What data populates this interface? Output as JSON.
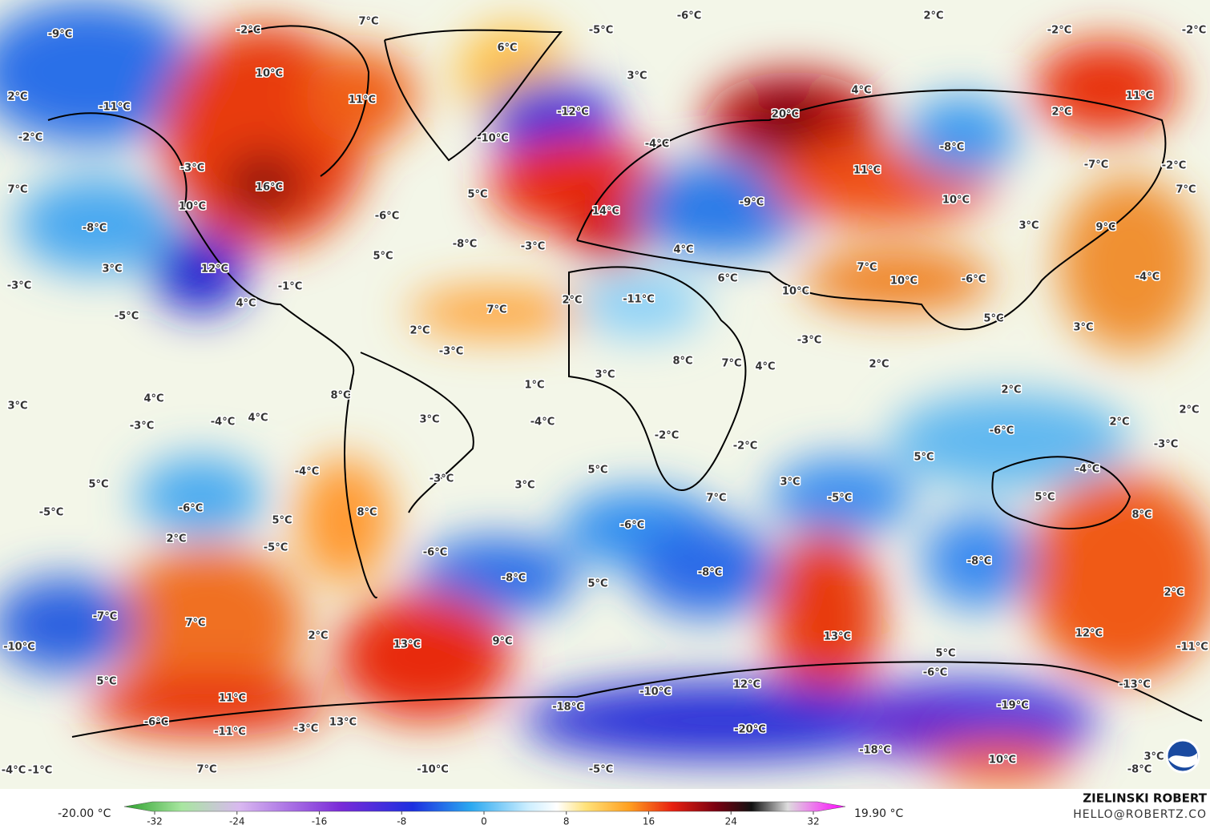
{
  "map": {
    "labels": [
      "-9°C",
      "-2°C",
      "7°C",
      "6°C",
      "-5°C",
      "-6°C",
      "2°C",
      "-2°C",
      "-2°C",
      "2°C",
      "-11°C",
      "10°C",
      "11°C",
      "3°C",
      "-12°C",
      "20°C",
      "4°C",
      "2°C",
      "11°C",
      "-2°C",
      "-10°C",
      "-4°C",
      "-8°C",
      "11°C",
      "-3°C",
      "-7°C",
      "-2°C",
      "7°C",
      "16°C",
      "5°C",
      "10°C",
      "-6°C",
      "14°C",
      "-9°C",
      "10°C",
      "7°C",
      "-8°C",
      "-8°C",
      "-3°C",
      "4°C",
      "3°C",
      "9°C",
      "12°C",
      "3°C",
      "5°C",
      "7°C",
      "10°C",
      "-6°C",
      "-4°C",
      "-3°C",
      "-1°C",
      "6°C",
      "10°C",
      "4°C",
      "2°C",
      "-11°C",
      "7°C",
      "-5°C",
      "5°C",
      "3°C",
      "2°C",
      "-3°C",
      "-3°C",
      "8°C",
      "7°C",
      "4°C",
      "2°C",
      "3°C",
      "1°C",
      "4°C",
      "8°C",
      "2°C",
      "3°C",
      "2°C",
      "4°C",
      "-4°C",
      "-3°C",
      "3°C",
      "-4°C",
      "2°C",
      "-6°C",
      "-2°C",
      "-2°C",
      "-3°C",
      "5°C",
      "5°C",
      "-4°C",
      "-4°C",
      "-3°C",
      "3°C",
      "5°C",
      "3°C",
      "7°C",
      "-5°C",
      "5°C",
      "-6°C",
      "-5°C",
      "8°C",
      "8°C",
      "5°C",
      "-6°C",
      "2°C",
      "-5°C",
      "-6°C",
      "-8°C",
      "-8°C",
      "-8°C",
      "5°C",
      "2°C",
      "-7°C",
      "7°C",
      "2°C",
      "13°C",
      "12°C",
      "13°C",
      "9°C",
      "-10°C",
      "-11°C",
      "5°C",
      "-6°C",
      "5°C",
      "12°C",
      "-13°C",
      "-10°C",
      "11°C",
      "-18°C",
      "-19°C",
      "-6°C",
      "-11°C",
      "-3°C",
      "13°C",
      "-20°C",
      "-18°C",
      "10°C",
      "3°C",
      "-4°C",
      "-1°C",
      "7°C",
      "-10°C",
      "-5°C",
      "-8°C"
    ]
  },
  "colorbar": {
    "min_label": "-20.00 °C",
    "max_label": "19.90 °C",
    "ticks": [
      -32,
      -24,
      -16,
      -8,
      0,
      8,
      16,
      24,
      32
    ]
  },
  "credit": {
    "name": "ZIELINSKI ROBERT",
    "email": "HELLO@ROBERTZ.CO"
  }
}
